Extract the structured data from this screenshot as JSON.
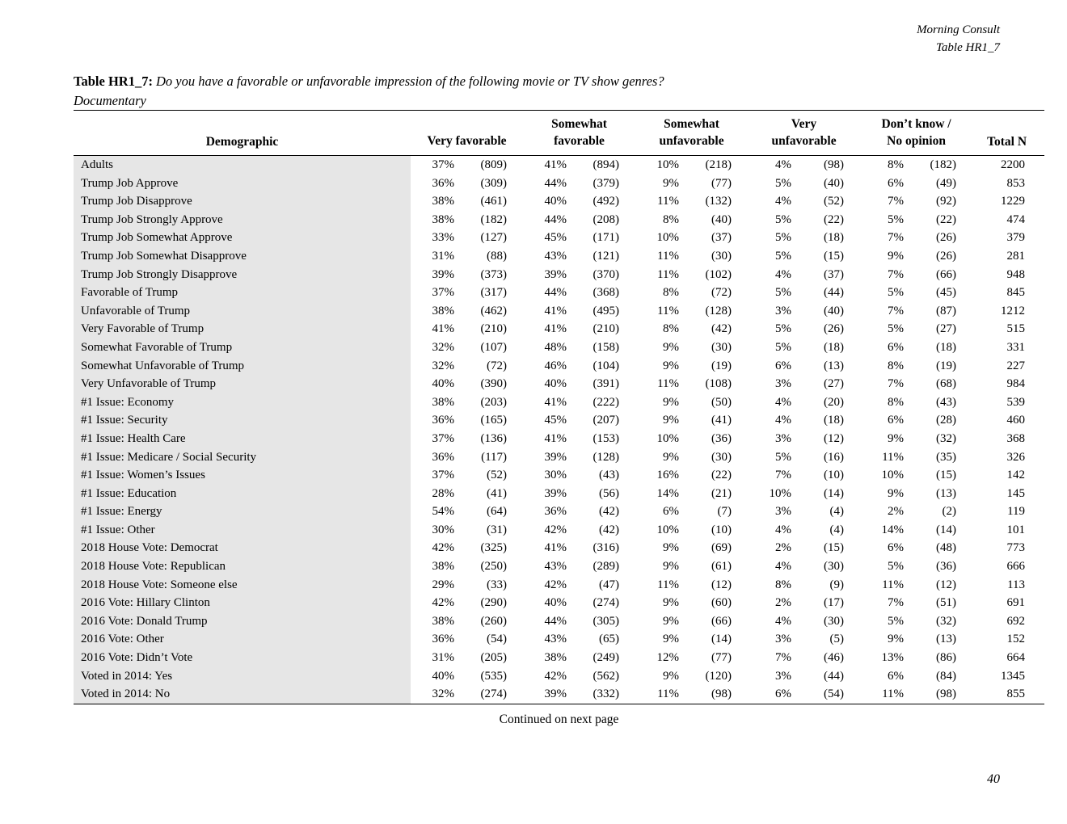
{
  "page": {
    "header_line1": "Morning Consult",
    "header_line2": "Table HR1_7",
    "title_label": "Table HR1_7:",
    "title_question": "Do you have a favorable or unfavorable impression of the following movie or TV show genres?",
    "title_subject": "Documentary",
    "footer_note": "Continued on next page",
    "page_number": "40"
  },
  "colors": {
    "row_label_background": "#e6e6e6",
    "text": "#000000",
    "page_background": "#ffffff"
  },
  "table": {
    "demographic_header": "Demographic",
    "total_header": "Total N",
    "columns": [
      {
        "line1": "",
        "line2": "Very favorable"
      },
      {
        "line1": "Somewhat",
        "line2": "favorable"
      },
      {
        "line1": "Somewhat",
        "line2": "unfavorable"
      },
      {
        "line1": "Very",
        "line2": "unfavorable"
      },
      {
        "line1": "Don’t know /",
        "line2": "No opinion"
      }
    ],
    "rows": [
      {
        "demographic": "Adults",
        "values": [
          "37%",
          "(809)",
          "41%",
          "(894)",
          "10%",
          "(218)",
          "4%",
          "(98)",
          "8%",
          "(182)"
        ],
        "total": "2200"
      },
      {
        "demographic": "Trump Job Approve",
        "values": [
          "36%",
          "(309)",
          "44%",
          "(379)",
          "9%",
          "(77)",
          "5%",
          "(40)",
          "6%",
          "(49)"
        ],
        "total": "853"
      },
      {
        "demographic": "Trump Job Disapprove",
        "values": [
          "38%",
          "(461)",
          "40%",
          "(492)",
          "11%",
          "(132)",
          "4%",
          "(52)",
          "7%",
          "(92)"
        ],
        "total": "1229"
      },
      {
        "demographic": "Trump Job Strongly Approve",
        "values": [
          "38%",
          "(182)",
          "44%",
          "(208)",
          "8%",
          "(40)",
          "5%",
          "(22)",
          "5%",
          "(22)"
        ],
        "total": "474"
      },
      {
        "demographic": "Trump Job Somewhat Approve",
        "values": [
          "33%",
          "(127)",
          "45%",
          "(171)",
          "10%",
          "(37)",
          "5%",
          "(18)",
          "7%",
          "(26)"
        ],
        "total": "379"
      },
      {
        "demographic": "Trump Job Somewhat Disapprove",
        "values": [
          "31%",
          "(88)",
          "43%",
          "(121)",
          "11%",
          "(30)",
          "5%",
          "(15)",
          "9%",
          "(26)"
        ],
        "total": "281"
      },
      {
        "demographic": "Trump Job Strongly Disapprove",
        "values": [
          "39%",
          "(373)",
          "39%",
          "(370)",
          "11%",
          "(102)",
          "4%",
          "(37)",
          "7%",
          "(66)"
        ],
        "total": "948"
      },
      {
        "demographic": "Favorable of Trump",
        "values": [
          "37%",
          "(317)",
          "44%",
          "(368)",
          "8%",
          "(72)",
          "5%",
          "(44)",
          "5%",
          "(45)"
        ],
        "total": "845"
      },
      {
        "demographic": "Unfavorable of Trump",
        "values": [
          "38%",
          "(462)",
          "41%",
          "(495)",
          "11%",
          "(128)",
          "3%",
          "(40)",
          "7%",
          "(87)"
        ],
        "total": "1212"
      },
      {
        "demographic": "Very Favorable of Trump",
        "values": [
          "41%",
          "(210)",
          "41%",
          "(210)",
          "8%",
          "(42)",
          "5%",
          "(26)",
          "5%",
          "(27)"
        ],
        "total": "515"
      },
      {
        "demographic": "Somewhat Favorable of Trump",
        "values": [
          "32%",
          "(107)",
          "48%",
          "(158)",
          "9%",
          "(30)",
          "5%",
          "(18)",
          "6%",
          "(18)"
        ],
        "total": "331"
      },
      {
        "demographic": "Somewhat Unfavorable of Trump",
        "values": [
          "32%",
          "(72)",
          "46%",
          "(104)",
          "9%",
          "(19)",
          "6%",
          "(13)",
          "8%",
          "(19)"
        ],
        "total": "227"
      },
      {
        "demographic": "Very Unfavorable of Trump",
        "values": [
          "40%",
          "(390)",
          "40%",
          "(391)",
          "11%",
          "(108)",
          "3%",
          "(27)",
          "7%",
          "(68)"
        ],
        "total": "984"
      },
      {
        "demographic": "#1 Issue: Economy",
        "values": [
          "38%",
          "(203)",
          "41%",
          "(222)",
          "9%",
          "(50)",
          "4%",
          "(20)",
          "8%",
          "(43)"
        ],
        "total": "539"
      },
      {
        "demographic": "#1 Issue: Security",
        "values": [
          "36%",
          "(165)",
          "45%",
          "(207)",
          "9%",
          "(41)",
          "4%",
          "(18)",
          "6%",
          "(28)"
        ],
        "total": "460"
      },
      {
        "demographic": "#1 Issue: Health Care",
        "values": [
          "37%",
          "(136)",
          "41%",
          "(153)",
          "10%",
          "(36)",
          "3%",
          "(12)",
          "9%",
          "(32)"
        ],
        "total": "368"
      },
      {
        "demographic": "#1 Issue: Medicare / Social Security",
        "values": [
          "36%",
          "(117)",
          "39%",
          "(128)",
          "9%",
          "(30)",
          "5%",
          "(16)",
          "11%",
          "(35)"
        ],
        "total": "326"
      },
      {
        "demographic": "#1 Issue: Women’s Issues",
        "values": [
          "37%",
          "(52)",
          "30%",
          "(43)",
          "16%",
          "(22)",
          "7%",
          "(10)",
          "10%",
          "(15)"
        ],
        "total": "142"
      },
      {
        "demographic": "#1 Issue: Education",
        "values": [
          "28%",
          "(41)",
          "39%",
          "(56)",
          "14%",
          "(21)",
          "10%",
          "(14)",
          "9%",
          "(13)"
        ],
        "total": "145"
      },
      {
        "demographic": "#1 Issue: Energy",
        "values": [
          "54%",
          "(64)",
          "36%",
          "(42)",
          "6%",
          "(7)",
          "3%",
          "(4)",
          "2%",
          "(2)"
        ],
        "total": "119"
      },
      {
        "demographic": "#1 Issue: Other",
        "values": [
          "30%",
          "(31)",
          "42%",
          "(42)",
          "10%",
          "(10)",
          "4%",
          "(4)",
          "14%",
          "(14)"
        ],
        "total": "101"
      },
      {
        "demographic": "2018 House Vote: Democrat",
        "values": [
          "42%",
          "(325)",
          "41%",
          "(316)",
          "9%",
          "(69)",
          "2%",
          "(15)",
          "6%",
          "(48)"
        ],
        "total": "773"
      },
      {
        "demographic": "2018 House Vote: Republican",
        "values": [
          "38%",
          "(250)",
          "43%",
          "(289)",
          "9%",
          "(61)",
          "4%",
          "(30)",
          "5%",
          "(36)"
        ],
        "total": "666"
      },
      {
        "demographic": "2018 House Vote: Someone else",
        "values": [
          "29%",
          "(33)",
          "42%",
          "(47)",
          "11%",
          "(12)",
          "8%",
          "(9)",
          "11%",
          "(12)"
        ],
        "total": "113"
      },
      {
        "demographic": "2016 Vote: Hillary Clinton",
        "values": [
          "42%",
          "(290)",
          "40%",
          "(274)",
          "9%",
          "(60)",
          "2%",
          "(17)",
          "7%",
          "(51)"
        ],
        "total": "691"
      },
      {
        "demographic": "2016 Vote: Donald Trump",
        "values": [
          "38%",
          "(260)",
          "44%",
          "(305)",
          "9%",
          "(66)",
          "4%",
          "(30)",
          "5%",
          "(32)"
        ],
        "total": "692"
      },
      {
        "demographic": "2016 Vote: Other",
        "values": [
          "36%",
          "(54)",
          "43%",
          "(65)",
          "9%",
          "(14)",
          "3%",
          "(5)",
          "9%",
          "(13)"
        ],
        "total": "152"
      },
      {
        "demographic": "2016 Vote: Didn’t Vote",
        "values": [
          "31%",
          "(205)",
          "38%",
          "(249)",
          "12%",
          "(77)",
          "7%",
          "(46)",
          "13%",
          "(86)"
        ],
        "total": "664"
      },
      {
        "demographic": "Voted in 2014: Yes",
        "values": [
          "40%",
          "(535)",
          "42%",
          "(562)",
          "9%",
          "(120)",
          "3%",
          "(44)",
          "6%",
          "(84)"
        ],
        "total": "1345"
      },
      {
        "demographic": "Voted in 2014: No",
        "values": [
          "32%",
          "(274)",
          "39%",
          "(332)",
          "11%",
          "(98)",
          "6%",
          "(54)",
          "11%",
          "(98)"
        ],
        "total": "855"
      }
    ]
  }
}
